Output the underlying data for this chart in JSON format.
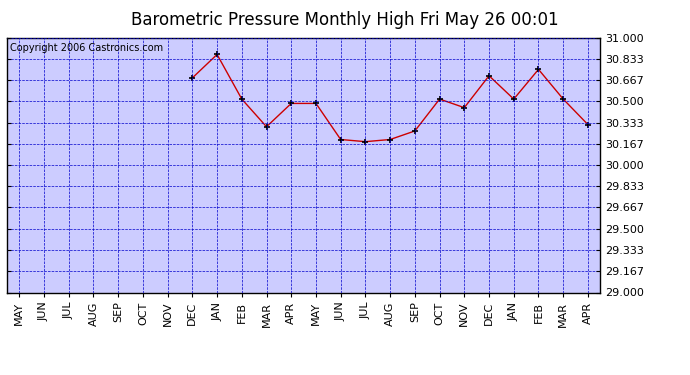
{
  "title": "Barometric Pressure Monthly High Fri May 26 00:01",
  "copyright": "Copyright 2006 Castronics.com",
  "x_labels": [
    "MAY",
    "JUN",
    "JUL",
    "AUG",
    "SEP",
    "OCT",
    "NOV",
    "DEC",
    "JAN",
    "FEB",
    "MAR",
    "APR",
    "MAY",
    "JUN",
    "JUL",
    "AUG",
    "SEP",
    "OCT",
    "NOV",
    "DEC",
    "JAN",
    "FEB",
    "MAR",
    "APR"
  ],
  "y_values": [
    null,
    null,
    null,
    null,
    null,
    null,
    null,
    30.683,
    30.867,
    30.517,
    30.3,
    30.483,
    30.483,
    30.2,
    30.183,
    30.2,
    30.267,
    30.517,
    30.45,
    30.7,
    30.517,
    30.75,
    30.517,
    30.317
  ],
  "ylim_min": 29.0,
  "ylim_max": 31.0,
  "yticks": [
    29.0,
    29.167,
    29.333,
    29.5,
    29.667,
    29.833,
    30.0,
    30.167,
    30.333,
    30.5,
    30.667,
    30.833,
    31.0
  ],
  "line_color": "#cc0000",
  "marker_color": "#000000",
  "fig_bg_color": "#ffffff",
  "plot_bg_color": "#ccccff",
  "grid_color": "#0000cc",
  "title_color": "#000000",
  "tick_label_color": "#000000",
  "copyright_color": "#000000",
  "title_fontsize": 12,
  "tick_fontsize": 8,
  "copyright_fontsize": 7
}
